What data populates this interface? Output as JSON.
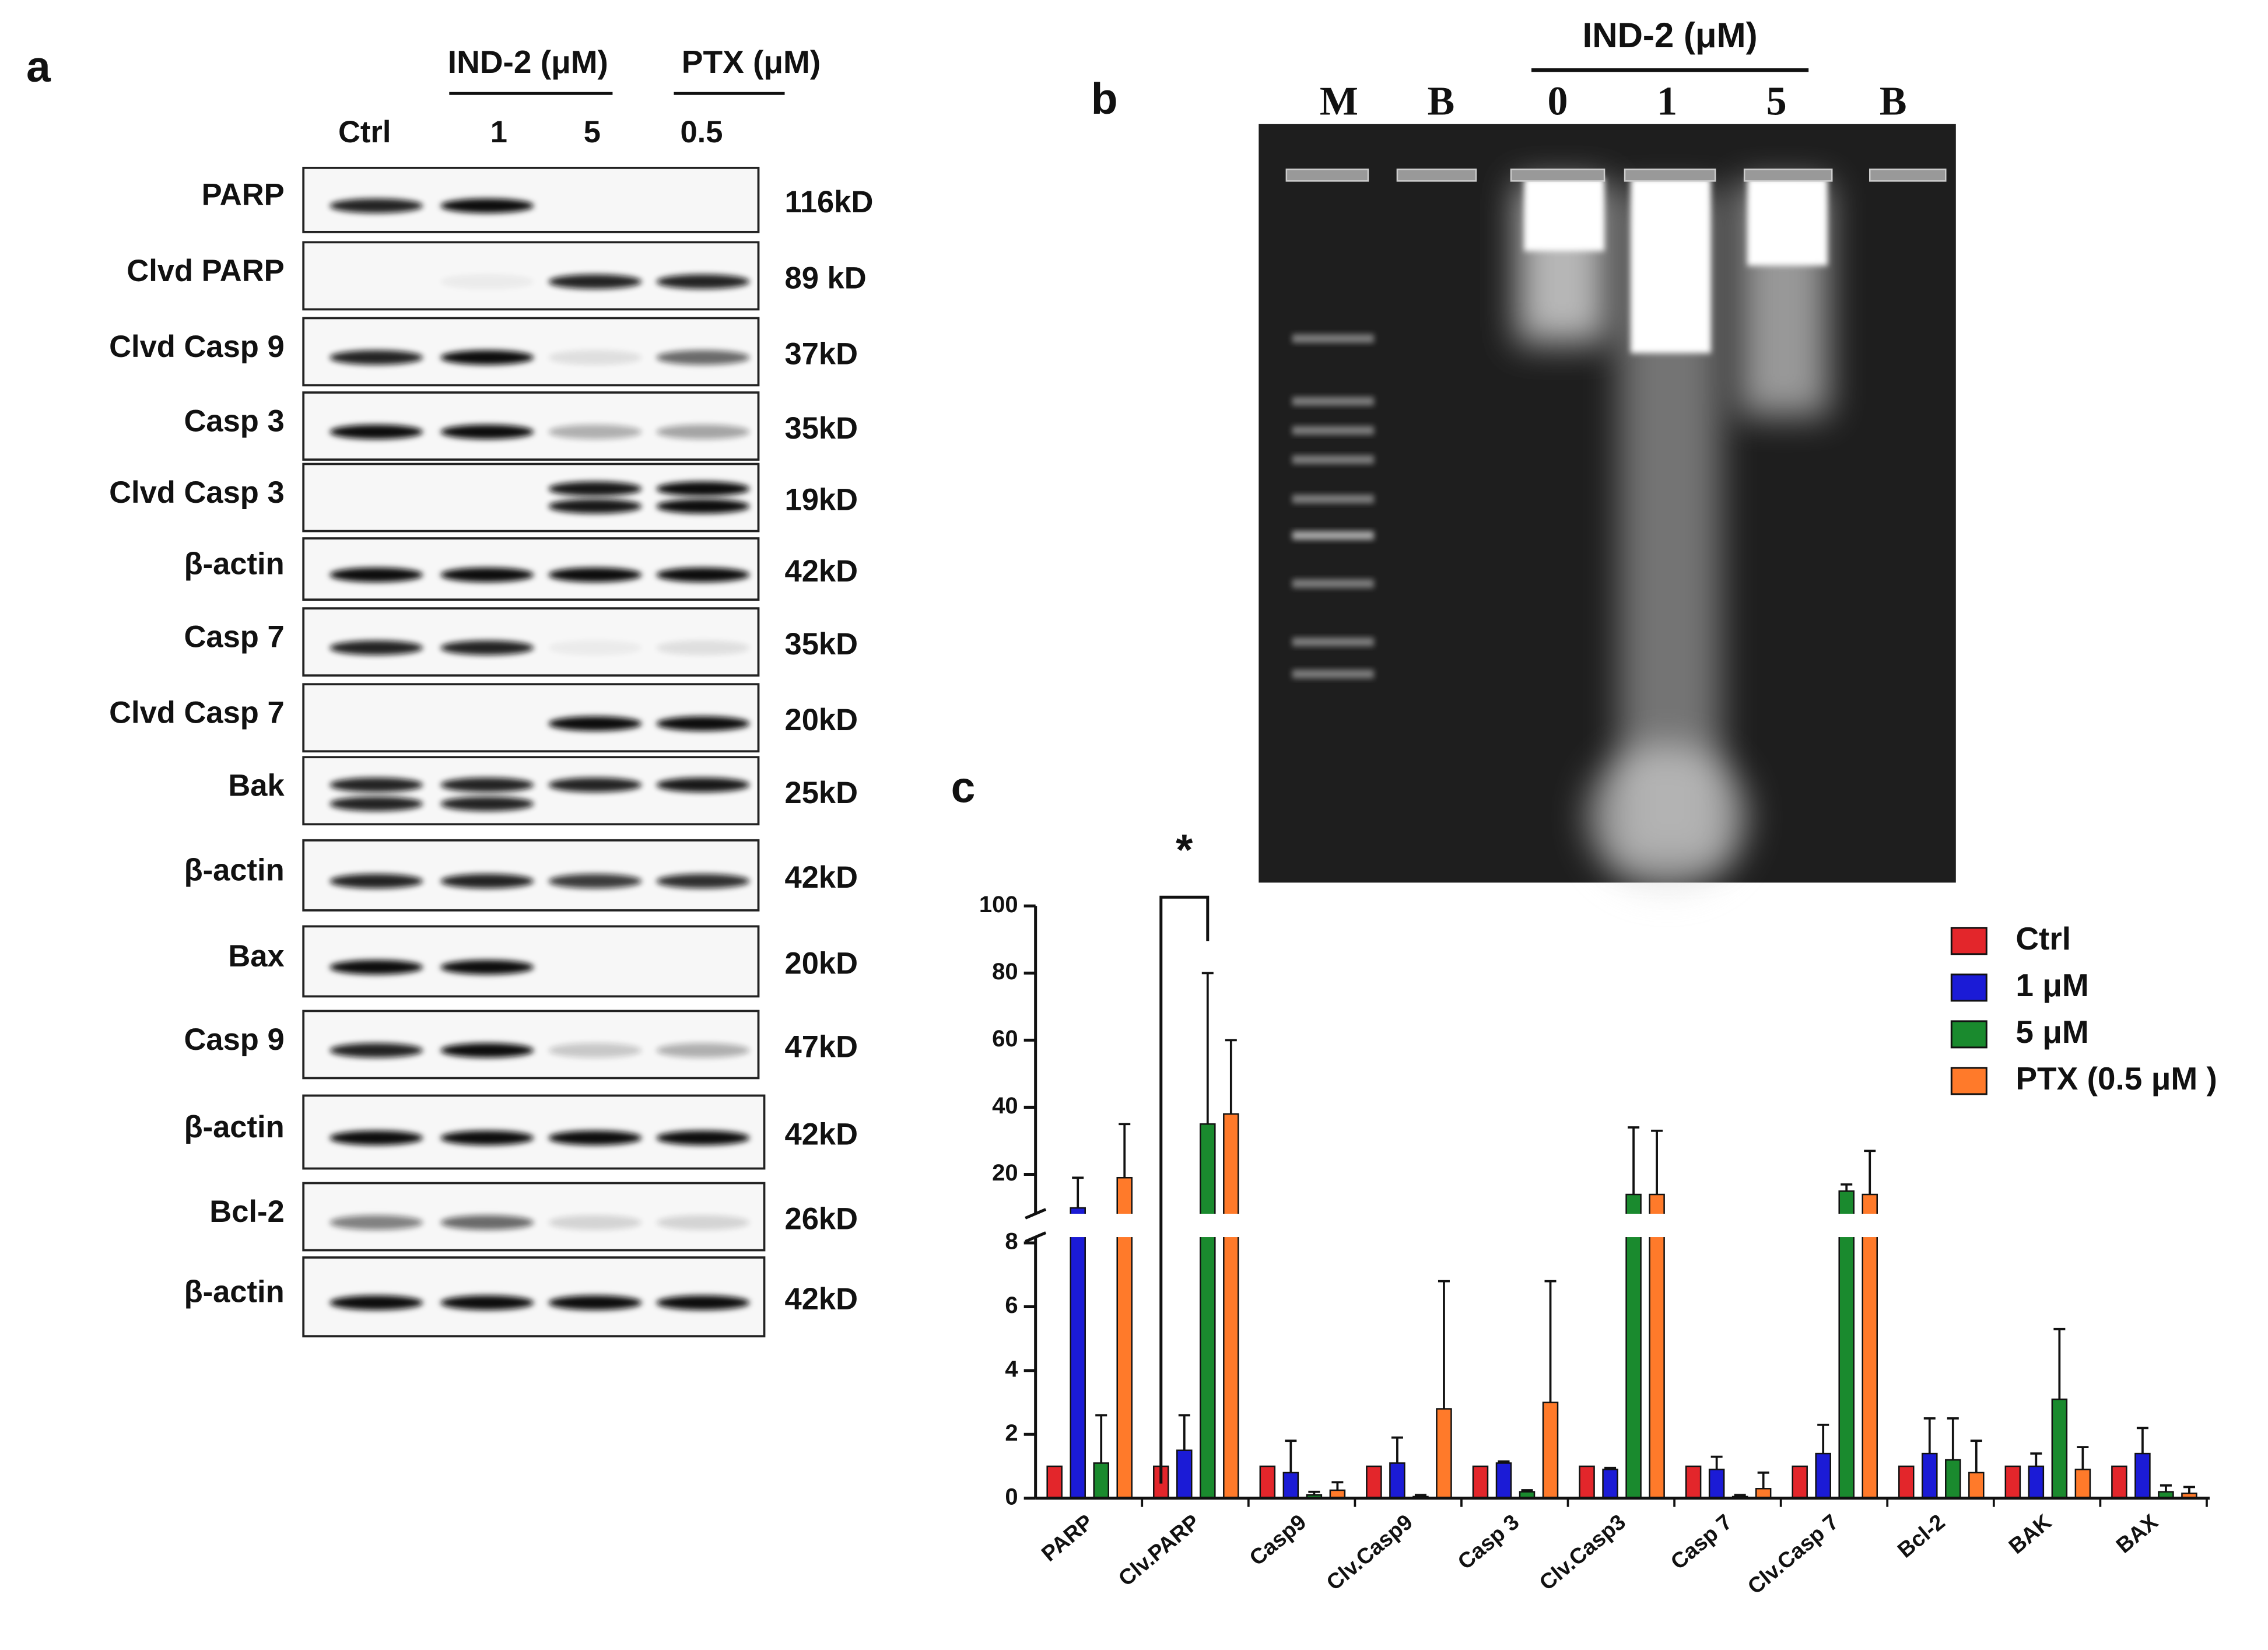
{
  "panel_a": {
    "letter": "a",
    "group_headers": [
      "IND-2 (μM)",
      "PTX (μM)"
    ],
    "lanes": [
      "Ctrl",
      "1",
      "5",
      "0.5"
    ],
    "rows": [
      {
        "label": "PARP",
        "size": "116kD"
      },
      {
        "label": "Clvd PARP",
        "size": "89 kD"
      },
      {
        "label": "Clvd Casp 9",
        "size": "37kD"
      },
      {
        "label": "Casp 3",
        "size": "35kD"
      },
      {
        "label": "Clvd Casp 3",
        "size": "19kD"
      },
      {
        "label": "β-actin",
        "size": "42kD"
      },
      {
        "label": "Casp 7",
        "size": "35kD"
      },
      {
        "label": "Clvd Casp 7",
        "size": "20kD"
      },
      {
        "label": "Bak",
        "size": "25kD"
      },
      {
        "label": "β-actin",
        "size": "42kD"
      },
      {
        "label": "Bax",
        "size": "20kD"
      },
      {
        "label": "Casp 9",
        "size": "47kD"
      },
      {
        "label": "β-actin",
        "size": "42kD"
      },
      {
        "label": "Bcl-2",
        "size": "26kD"
      },
      {
        "label": "β-actin",
        "size": "42kD"
      }
    ]
  },
  "panel_b": {
    "letter": "b",
    "group_header": "IND-2 (μM)",
    "lanes": [
      "M",
      "B",
      "0",
      "1",
      "5",
      "B"
    ]
  },
  "panel_c": {
    "letter": "c"
  },
  "chart_data": {
    "type": "bar",
    "categories": [
      "PARP",
      "Clv.PARP",
      "Casp9",
      "Clv.Casp9",
      "Casp 3",
      "Clv.Casp3",
      "Casp 7",
      "Clv.Casp 7",
      "Bcl-2",
      "BAK",
      "BAX"
    ],
    "series": [
      {
        "name": "Ctrl",
        "color": "#e3262b",
        "values": [
          1,
          1,
          1,
          1,
          1,
          1,
          1,
          1,
          1,
          1,
          1
        ],
        "errors": [
          null,
          null,
          null,
          null,
          null,
          null,
          null,
          null,
          null,
          null,
          null
        ]
      },
      {
        "name": "1 μM",
        "color": "#1b1bd6",
        "values": [
          10,
          1.5,
          0.8,
          1.1,
          1.1,
          0.9,
          0.9,
          1.4,
          1.4,
          1,
          1.4
        ],
        "errors": [
          9,
          1.1,
          1,
          0.8,
          0.05,
          0.05,
          0.4,
          0.9,
          1.1,
          0.4,
          0.8
        ]
      },
      {
        "name": "5 μM",
        "color": "#1a8a2e",
        "values": [
          1.1,
          35,
          0.1,
          0.05,
          0.2,
          14,
          0.05,
          15,
          1.2,
          3.1,
          0.2
        ],
        "errors": [
          1.5,
          45,
          0.1,
          0.05,
          0.05,
          20,
          0.05,
          2,
          1.3,
          2.2,
          0.2
        ]
      },
      {
        "name": "PTX (0.5 μM )",
        "color": "#ff7a2a",
        "values": [
          19,
          38,
          0.25,
          2.8,
          3,
          14,
          0.3,
          14,
          0.8,
          0.9,
          0.15
        ],
        "errors": [
          16,
          22,
          0.25,
          4,
          3.8,
          19,
          0.5,
          13,
          1,
          0.7,
          0.2
        ]
      }
    ],
    "ylim": [
      0,
      100
    ],
    "yticks": [
      0,
      2,
      4,
      6,
      8,
      20,
      40,
      60,
      80,
      100
    ],
    "axis_break": [
      8,
      10
    ],
    "annotations": [
      {
        "text": "*"
      }
    ],
    "legend": "top-right"
  }
}
